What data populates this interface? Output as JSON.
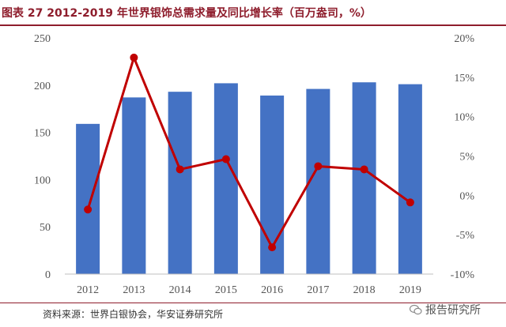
{
  "title": "图表 27 2012-2019 年世界银饰总需求量及同比增长率（百万盎司，%）",
  "source": "资料来源：世界白银协会，华安证券研究所",
  "watermark": "报告研究所",
  "colors": {
    "bar": "#4472c4",
    "line": "#c00000",
    "title": "#8e1d2c"
  },
  "chart_data": {
    "type": "bar+line",
    "categories": [
      "2012",
      "2013",
      "2014",
      "2015",
      "2016",
      "2017",
      "2018",
      "2019"
    ],
    "series": [
      {
        "type": "bar",
        "axis": "left",
        "values": [
          159,
          187,
          193,
          202,
          189,
          196,
          203,
          201
        ]
      },
      {
        "type": "line",
        "axis": "right",
        "values": [
          -1.8,
          17.5,
          3.3,
          4.6,
          -6.6,
          3.7,
          3.3,
          -0.9
        ]
      }
    ],
    "ylim_left": [
      0,
      250
    ],
    "ylim_right": [
      -10,
      20
    ],
    "yticks_left": [
      "0",
      "50",
      "100",
      "150",
      "200",
      "250"
    ],
    "yticks_right": [
      "-10%",
      "-5%",
      "0%",
      "5%",
      "10%",
      "15%",
      "20%"
    ],
    "grid": false,
    "legend": "none"
  }
}
